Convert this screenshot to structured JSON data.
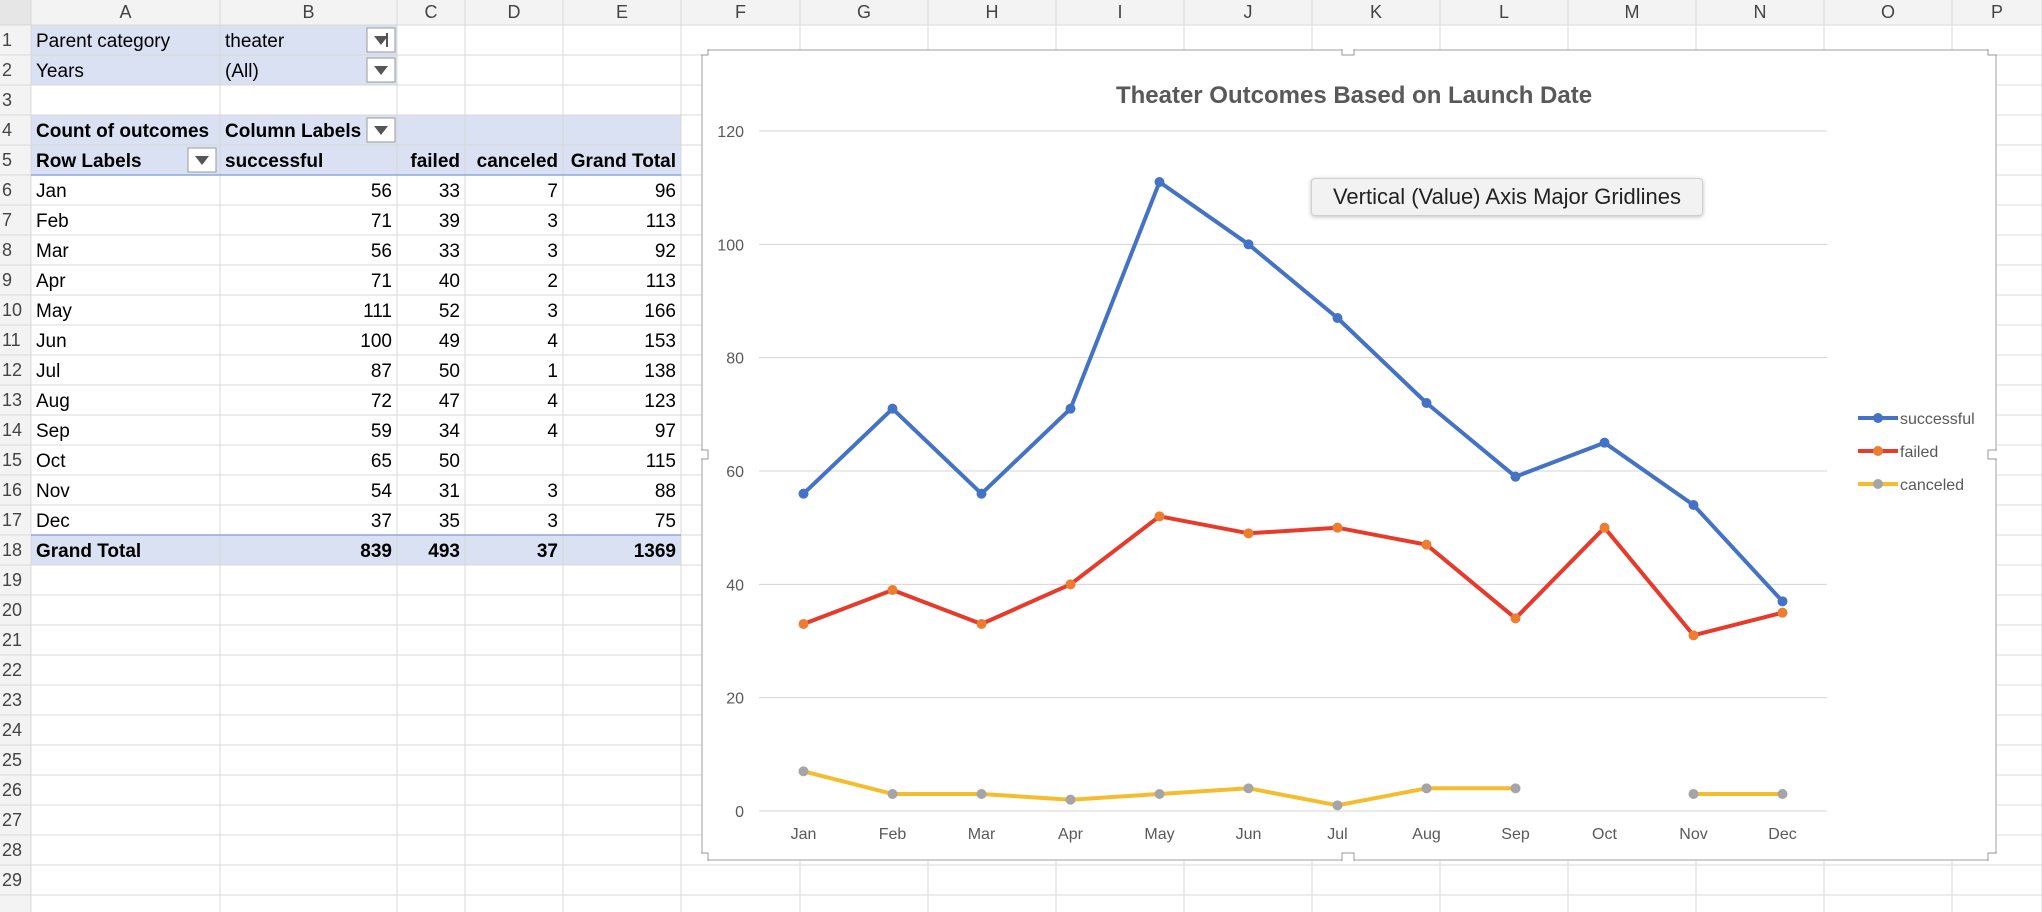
{
  "columns": [
    "A",
    "B",
    "C",
    "D",
    "E",
    "F",
    "G",
    "H",
    "I",
    "J",
    "K",
    "L",
    "M",
    "N",
    "O",
    "P"
  ],
  "rows": [
    "1",
    "2",
    "3",
    "4",
    "5",
    "6",
    "7",
    "8",
    "9",
    "10",
    "11",
    "12",
    "13",
    "14",
    "15",
    "16",
    "17",
    "18",
    "19",
    "20",
    "21",
    "22",
    "23",
    "24",
    "25",
    "26",
    "27",
    "28",
    "29"
  ],
  "filters": [
    {
      "label": "Parent category",
      "value": "theater",
      "icon": "filter-dropdown-icon"
    },
    {
      "label": "Years",
      "value": "(All)",
      "icon": "dropdown-arrow-icon"
    }
  ],
  "pivot": {
    "measure_label": "Count of outcomes",
    "column_labels": "Column Labels",
    "row_labels": "Row Labels",
    "headers": [
      "successful",
      "failed",
      "canceled",
      "Grand Total"
    ],
    "rows": [
      {
        "month": "Jan",
        "successful": "56",
        "failed": "33",
        "canceled": "7",
        "total": "96"
      },
      {
        "month": "Feb",
        "successful": "71",
        "failed": "39",
        "canceled": "3",
        "total": "113"
      },
      {
        "month": "Mar",
        "successful": "56",
        "failed": "33",
        "canceled": "3",
        "total": "92"
      },
      {
        "month": "Apr",
        "successful": "71",
        "failed": "40",
        "canceled": "2",
        "total": "113"
      },
      {
        "month": "May",
        "successful": "111",
        "failed": "52",
        "canceled": "3",
        "total": "166"
      },
      {
        "month": "Jun",
        "successful": "100",
        "failed": "49",
        "canceled": "4",
        "total": "153"
      },
      {
        "month": "Jul",
        "successful": "87",
        "failed": "50",
        "canceled": "1",
        "total": "138"
      },
      {
        "month": "Aug",
        "successful": "72",
        "failed": "47",
        "canceled": "4",
        "total": "123"
      },
      {
        "month": "Sep",
        "successful": "59",
        "failed": "34",
        "canceled": "4",
        "total": "97"
      },
      {
        "month": "Oct",
        "successful": "65",
        "failed": "50",
        "canceled": "",
        "total": "115"
      },
      {
        "month": "Nov",
        "successful": "54",
        "failed": "31",
        "canceled": "3",
        "total": "88"
      },
      {
        "month": "Dec",
        "successful": "37",
        "failed": "35",
        "canceled": "3",
        "total": "75"
      }
    ],
    "grand_total": {
      "label": "Grand Total",
      "successful": "839",
      "failed": "493",
      "canceled": "37",
      "total": "1369"
    }
  },
  "tooltip": "Vertical (Value) Axis Major Gridlines",
  "colors": {
    "successful": "#4472C4",
    "failed": "#E83A2A",
    "failed_marker": "#ED7D31",
    "canceled": "#F5BD2E",
    "canceled_marker": "#A5A5A5",
    "pivot_header_bg": "#D9E1F2",
    "pivot_rule": "#8EA9DB",
    "grid": "#D4D4D4"
  },
  "chart_data": {
    "type": "line",
    "title": "Theater Outcomes Based on Launch Date",
    "categories": [
      "Jan",
      "Feb",
      "Mar",
      "Apr",
      "May",
      "Jun",
      "Jul",
      "Aug",
      "Sep",
      "Oct",
      "Nov",
      "Dec"
    ],
    "series": [
      {
        "name": "successful",
        "values": [
          56,
          71,
          56,
          71,
          111,
          100,
          87,
          72,
          59,
          65,
          54,
          37
        ]
      },
      {
        "name": "failed",
        "values": [
          33,
          39,
          33,
          40,
          52,
          49,
          50,
          47,
          34,
          50,
          31,
          35
        ]
      },
      {
        "name": "canceled",
        "values": [
          7,
          3,
          3,
          2,
          3,
          4,
          1,
          4,
          4,
          null,
          3,
          3
        ]
      }
    ],
    "ylim": [
      0,
      120
    ],
    "yticks": [
      0,
      20,
      40,
      60,
      80,
      100,
      120
    ],
    "grid": true,
    "legend_position": "right"
  }
}
